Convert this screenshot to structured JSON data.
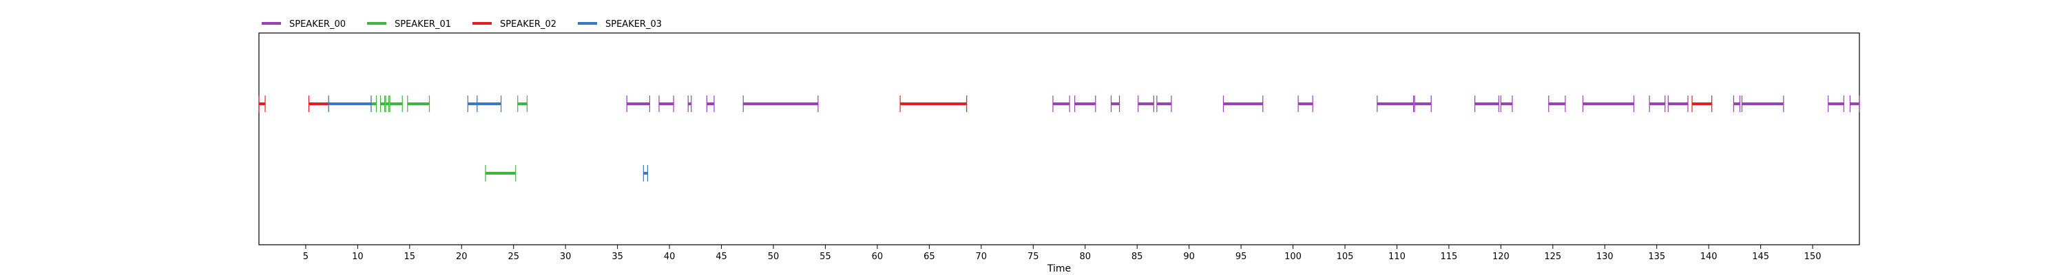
{
  "chart_data": {
    "type": "timeline",
    "xlabel": "Time",
    "xlim": [
      0.5,
      154.5
    ],
    "xticks": [
      5,
      10,
      15,
      20,
      25,
      30,
      35,
      40,
      45,
      50,
      55,
      60,
      65,
      70,
      75,
      80,
      85,
      90,
      95,
      100,
      105,
      110,
      115,
      120,
      125,
      130,
      135,
      140,
      145,
      150
    ],
    "grid": false,
    "legend": {
      "placement": "top-left-outside",
      "entries": [
        "SPEAKER_00",
        "SPEAKER_01",
        "SPEAKER_02",
        "SPEAKER_03"
      ]
    },
    "series": [
      {
        "name": "SPEAKER_00",
        "color": "#9b3fb5",
        "segments": [
          {
            "start": 35.9,
            "end": 38.1,
            "row": 0
          },
          {
            "start": 39.0,
            "end": 40.4,
            "row": 0
          },
          {
            "start": 41.8,
            "end": 42.1,
            "row": 0
          },
          {
            "start": 43.6,
            "end": 44.3,
            "row": 0
          },
          {
            "start": 47.1,
            "end": 54.3,
            "row": 0
          },
          {
            "start": 76.9,
            "end": 78.5,
            "row": 0
          },
          {
            "start": 79.0,
            "end": 81.0,
            "row": 0
          },
          {
            "start": 82.5,
            "end": 83.3,
            "row": 0
          },
          {
            "start": 85.1,
            "end": 86.6,
            "row": 0
          },
          {
            "start": 86.9,
            "end": 88.3,
            "row": 0
          },
          {
            "start": 93.3,
            "end": 97.1,
            "row": 0
          },
          {
            "start": 100.5,
            "end": 101.9,
            "row": 0
          },
          {
            "start": 108.1,
            "end": 111.6,
            "row": 0
          },
          {
            "start": 111.7,
            "end": 113.3,
            "row": 0
          },
          {
            "start": 117.5,
            "end": 119.8,
            "row": 0
          },
          {
            "start": 120.0,
            "end": 121.1,
            "row": 0
          },
          {
            "start": 124.6,
            "end": 126.2,
            "row": 0
          },
          {
            "start": 127.9,
            "end": 132.8,
            "row": 0
          },
          {
            "start": 134.3,
            "end": 135.8,
            "row": 0
          },
          {
            "start": 136.1,
            "end": 138.0,
            "row": 0
          },
          {
            "start": 142.4,
            "end": 143.0,
            "row": 0
          },
          {
            "start": 143.2,
            "end": 147.2,
            "row": 0
          },
          {
            "start": 151.5,
            "end": 153.0,
            "row": 0
          },
          {
            "start": 153.6,
            "end": 154.5,
            "row": 0
          }
        ]
      },
      {
        "name": "SPEAKER_01",
        "color": "#3fb53f",
        "segments": [
          {
            "start": 11.3,
            "end": 11.8,
            "row": 0
          },
          {
            "start": 12.2,
            "end": 12.6,
            "row": 0
          },
          {
            "start": 12.7,
            "end": 13.0,
            "row": 0
          },
          {
            "start": 13.1,
            "end": 14.3,
            "row": 0
          },
          {
            "start": 14.8,
            "end": 16.9,
            "row": 0
          },
          {
            "start": 25.4,
            "end": 26.3,
            "row": 0
          },
          {
            "start": 22.3,
            "end": 25.2,
            "row": 1
          }
        ]
      },
      {
        "name": "SPEAKER_02",
        "color": "#e02020",
        "segments": [
          {
            "start": 0.5,
            "end": 1.1,
            "row": 0
          },
          {
            "start": 5.3,
            "end": 7.2,
            "row": 0
          },
          {
            "start": 62.2,
            "end": 68.6,
            "row": 0
          },
          {
            "start": 138.4,
            "end": 140.3,
            "row": 0
          }
        ]
      },
      {
        "name": "SPEAKER_03",
        "color": "#3a78c2",
        "segments": [
          {
            "start": 7.2,
            "end": 11.3,
            "row": 0
          },
          {
            "start": 20.6,
            "end": 21.5,
            "row": 0
          },
          {
            "start": 21.5,
            "end": 23.8,
            "row": 0
          },
          {
            "start": 37.5,
            "end": 37.9,
            "row": 1
          }
        ]
      }
    ]
  }
}
